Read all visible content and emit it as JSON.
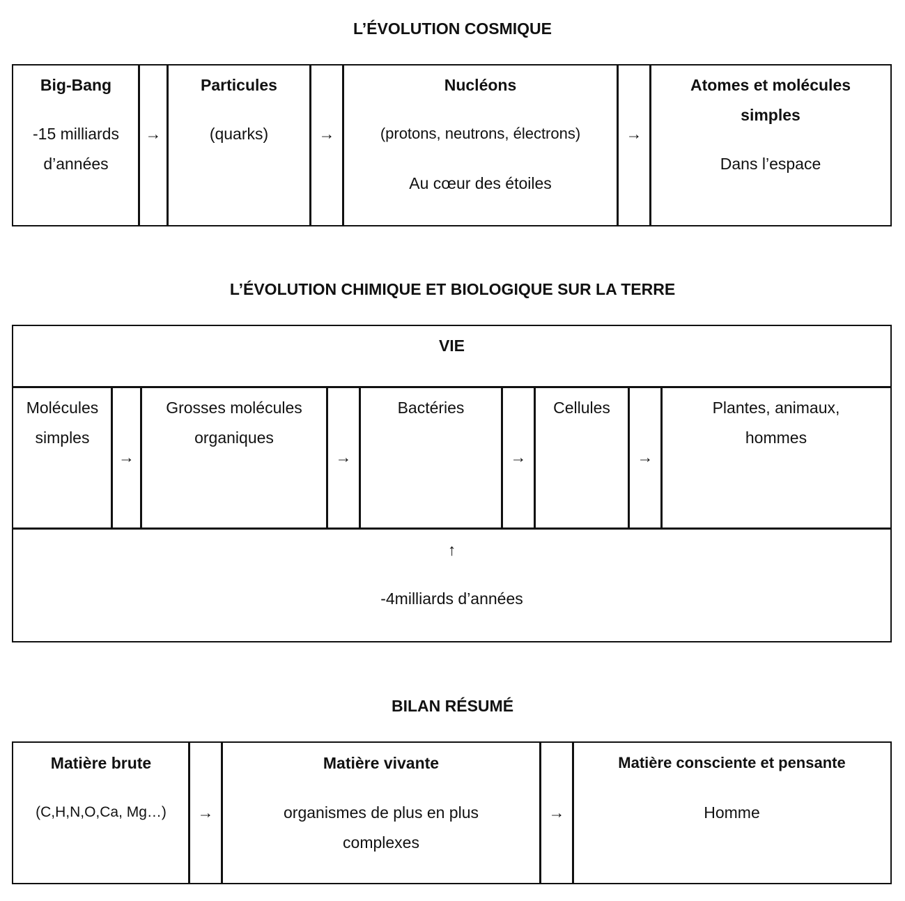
{
  "cosmic": {
    "title": "L’ÉVOLUTION COSMIQUE",
    "bigbang": {
      "head": "Big-Bang",
      "l1": "-15  milliards",
      "l2": "d’années"
    },
    "particules": {
      "head": "Particules",
      "l1": "(quarks)"
    },
    "nucleons": {
      "head": "Nucléons",
      "l1": "(protons, neutrons, électrons)",
      "l2": "Au cœur des étoiles"
    },
    "atomes": {
      "head1": "Atomes et molécules",
      "head2": "simples",
      "l1": "Dans l’espace"
    },
    "arrow": "→"
  },
  "earth": {
    "title": "L’ÉVOLUTION CHIMIQUE ET BIOLOGIQUE SUR LA TERRE",
    "vie": "VIE",
    "stages": [
      [
        "Molécules",
        "simples"
      ],
      [
        "Grosses molécules",
        "organiques"
      ],
      [
        "Bactéries",
        ""
      ],
      [
        "Cellules",
        ""
      ],
      [
        "Plantes, animaux,",
        "hommes"
      ]
    ],
    "arrow": "→",
    "up_arrow": "↑",
    "time": "-4milliards d’années"
  },
  "summary": {
    "title": "BILAN RÉSUMÉ",
    "brute": {
      "head": "Matière brute",
      "l1": "(C,H,N,O,Ca, Mg…)"
    },
    "vivante": {
      "head": "Matière vivante",
      "l1": "organismes de plus en plus",
      "l2": "complexes"
    },
    "consciente": {
      "head": "Matière consciente et pensante",
      "l1": "Homme"
    },
    "arrow": "→"
  }
}
